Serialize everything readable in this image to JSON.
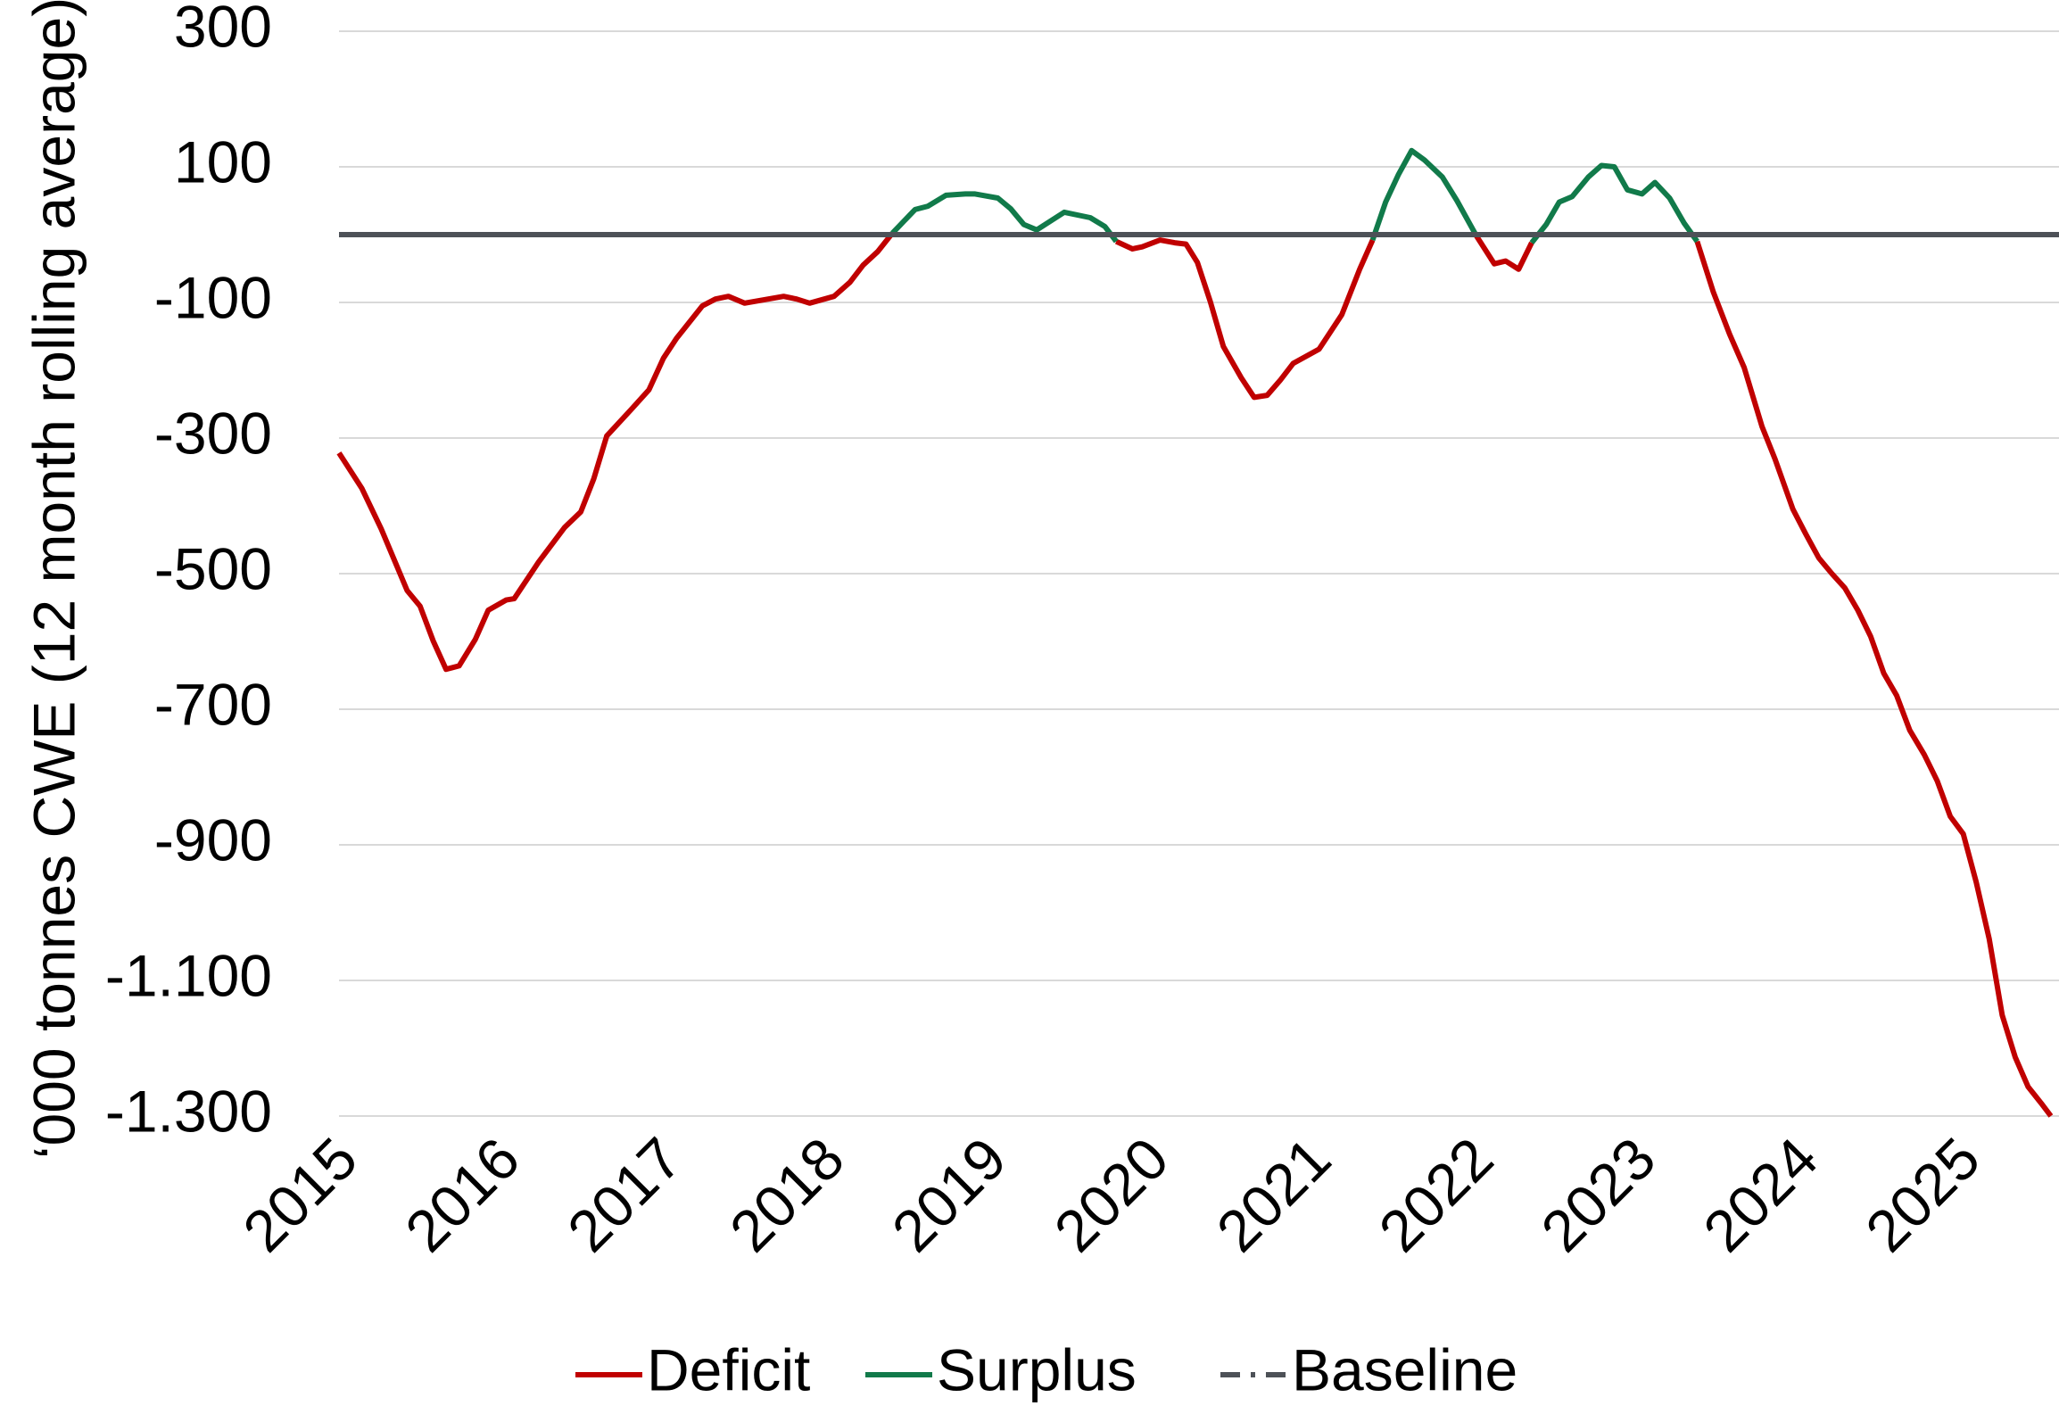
{
  "chart_data": {
    "type": "line",
    "y_label": "‘000 tonnes CWE (12 month rolling average)",
    "x": [
      2015.0,
      2015.14,
      2015.26,
      2015.42,
      2015.5,
      2015.58,
      2015.66,
      2015.74,
      2015.84,
      2015.92,
      2016.03,
      2016.08,
      2016.23,
      2016.39,
      2016.49,
      2016.57,
      2016.65,
      2016.8,
      2016.91,
      2017.0,
      2017.08,
      2017.24,
      2017.32,
      2017.4,
      2017.5,
      2017.74,
      2017.82,
      2017.9,
      2018.05,
      2018.15,
      2018.23,
      2018.32,
      2018.41,
      2018.55,
      2018.63,
      2018.74,
      2018.86,
      2018.92,
      2019.06,
      2019.14,
      2019.22,
      2019.3,
      2019.47,
      2019.63,
      2019.72,
      2019.79,
      2019.89,
      2019.95,
      2020.06,
      2020.15,
      2020.22,
      2020.29,
      2020.37,
      2020.45,
      2020.56,
      2020.64,
      2020.72,
      2020.8,
      2020.88,
      2021.04,
      2021.18,
      2021.29,
      2021.37,
      2021.45,
      2021.53,
      2021.61,
      2021.69,
      2021.8,
      2021.89,
      2022.01,
      2022.12,
      2022.19,
      2022.27,
      2022.35,
      2022.44,
      2022.52,
      2022.6,
      2022.7,
      2022.78,
      2022.86,
      2022.94,
      2023.03,
      2023.11,
      2023.2,
      2023.29,
      2023.37,
      2023.47,
      2023.57,
      2023.66,
      2023.77,
      2023.85,
      2023.96,
      2024.04,
      2024.12,
      2024.2,
      2024.28,
      2024.36,
      2024.44,
      2024.52,
      2024.6,
      2024.68,
      2024.77,
      2024.85,
      2024.93,
      2025.01,
      2025.09,
      2025.17,
      2025.25,
      2025.33,
      2025.41,
      2025.49,
      2025.55
    ],
    "series": [
      {
        "name": "Deficit",
        "color": "#c00000",
        "values": [
          -322,
          -374,
          -434,
          -525,
          -548,
          -599,
          -641,
          -636,
          -597,
          -554,
          -539,
          -537,
          -483,
          -432,
          -409,
          -360,
          -297,
          -258,
          -229,
          -182,
          -153,
          -105,
          -95,
          -91,
          -101,
          -91,
          -95,
          -101,
          -91,
          -70,
          -45,
          -25,
          2,
          null,
          null,
          null,
          null,
          null,
          null,
          null,
          null,
          null,
          null,
          null,
          null,
          -10,
          -21,
          -18,
          -8,
          -12,
          -14,
          -41,
          -99,
          -165,
          -211,
          -240,
          -237,
          -215,
          -190,
          -169,
          -118,
          -51,
          -8,
          null,
          null,
          null,
          null,
          null,
          null,
          -2,
          -43,
          -39,
          -51,
          -12,
          null,
          null,
          null,
          null,
          null,
          null,
          null,
          null,
          null,
          null,
          null,
          -10,
          -85,
          -147,
          -196,
          -283,
          -331,
          -405,
          -442,
          -477,
          -500,
          -521,
          -554,
          -593,
          -647,
          -680,
          -731,
          -767,
          -806,
          -858,
          -884,
          -955,
          -1039,
          -1151,
          -1213,
          -1257,
          -1281,
          -1300
        ]
      },
      {
        "name": "Surplus",
        "color": "#117a4a",
        "values": [
          null,
          null,
          null,
          null,
          null,
          null,
          null,
          null,
          null,
          null,
          null,
          null,
          null,
          null,
          null,
          null,
          null,
          null,
          null,
          null,
          null,
          null,
          null,
          null,
          null,
          null,
          null,
          null,
          null,
          null,
          null,
          null,
          2,
          37,
          42,
          58,
          60,
          60,
          54,
          38,
          15,
          7,
          33,
          25,
          12,
          -10,
          null,
          null,
          null,
          null,
          null,
          null,
          null,
          null,
          null,
          null,
          null,
          null,
          null,
          null,
          null,
          null,
          -8,
          48,
          89,
          124,
          110,
          85,
          50,
          -2,
          null,
          null,
          null,
          -12,
          15,
          48,
          56,
          85,
          102,
          100,
          66,
          60,
          77,
          54,
          17,
          -10,
          null,
          null,
          null,
          null,
          null,
          null,
          null,
          null,
          null,
          null,
          null,
          null,
          null,
          null,
          null,
          null,
          null,
          null,
          null,
          null,
          null,
          null,
          null,
          null,
          null,
          null
        ]
      },
      {
        "name": "Baseline",
        "color": "#4d5157",
        "dash": true,
        "x": [
          2015,
          2025.6
        ],
        "values": [
          0,
          0
        ]
      }
    ],
    "xlim": [
      2015,
      2025.6
    ],
    "xticks": [
      2015,
      2016,
      2017,
      2018,
      2019,
      2020,
      2021,
      2022,
      2023,
      2024,
      2025
    ],
    "ylim": [
      -1300,
      300
    ],
    "yticks": [
      300,
      100,
      -100,
      -300,
      -500,
      -700,
      -900,
      {
        "value": -1100,
        "label": "-1.100"
      },
      {
        "value": -1300,
        "label": "-1.300"
      }
    ],
    "grid": true,
    "legend": "bottom"
  }
}
